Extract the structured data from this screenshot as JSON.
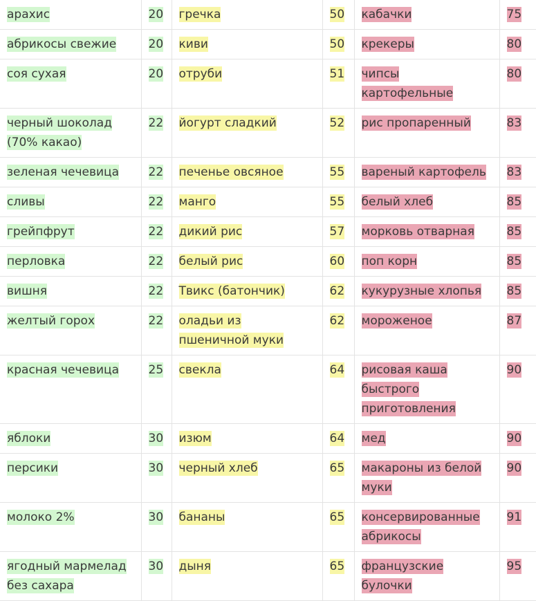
{
  "colors": {
    "low": "#d3f7d0",
    "medium": "#f8f6a6",
    "high": "#eaa6b4"
  },
  "rows": [
    {
      "low_food": "арахис",
      "low_gi": "20",
      "mid_food": "гречка",
      "mid_gi": "50",
      "high_food": "кабачки",
      "high_gi": "75"
    },
    {
      "low_food": "абрикосы свежие",
      "low_gi": "20",
      "mid_food": "киви",
      "mid_gi": "50",
      "high_food": "крекеры",
      "high_gi": "80"
    },
    {
      "low_food": "соя сухая",
      "low_gi": "20",
      "mid_food": "отруби",
      "mid_gi": "51",
      "high_food": "чипсы картофельные",
      "high_gi": "80"
    },
    {
      "low_food": "черный шоколад (70% какао)",
      "low_gi": "22",
      "mid_food": "йогурт сладкий",
      "mid_gi": "52",
      "high_food": "рис пропаренный",
      "high_gi": "83"
    },
    {
      "low_food": "зеленая чечевица",
      "low_gi": "22",
      "mid_food": "печенье овсяное",
      "mid_gi": "55",
      "high_food": "вареный картофель",
      "high_gi": "83"
    },
    {
      "low_food": "сливы",
      "low_gi": "22",
      "mid_food": "манго",
      "mid_gi": "55",
      "high_food": "белый хлеб",
      "high_gi": "85"
    },
    {
      "low_food": "грейпфрут",
      "low_gi": "22",
      "mid_food": "дикий рис",
      "mid_gi": "57",
      "high_food": "морковь отварная",
      "high_gi": "85"
    },
    {
      "low_food": "перловка",
      "low_gi": "22",
      "mid_food": "белый рис",
      "mid_gi": "60",
      "high_food": "поп корн",
      "high_gi": "85"
    },
    {
      "low_food": "вишня",
      "low_gi": "22",
      "mid_food": "Твикс (батончик)",
      "mid_gi": "62",
      "high_food": "кукурузные хлопья",
      "high_gi": "85"
    },
    {
      "low_food": "желтый горох",
      "low_gi": "22",
      "mid_food": "оладьи из пшеничной муки",
      "mid_gi": "62",
      "high_food": "мороженое",
      "high_gi": "87"
    },
    {
      "low_food": "красная чечевица",
      "low_gi": "25",
      "mid_food": "свекла",
      "mid_gi": "64",
      "high_food": "рисовая каша быстрого приготовления",
      "high_gi": "90"
    },
    {
      "low_food": "яблоки",
      "low_gi": "30",
      "mid_food": "изюм",
      "mid_gi": "64",
      "high_food": "мед",
      "high_gi": "90"
    },
    {
      "low_food": "персики",
      "low_gi": "30",
      "mid_food": "черный хлеб",
      "mid_gi": "65",
      "high_food": "макароны из белой муки",
      "high_gi": "90"
    },
    {
      "low_food": "молоко 2%",
      "low_gi": "30",
      "mid_food": "бананы",
      "mid_gi": "65",
      "high_food": "консервированные абрикосы",
      "high_gi": "91"
    },
    {
      "low_food": "ягодный мармелад без сахара",
      "low_gi": "30",
      "mid_food": "дыня",
      "mid_gi": "65",
      "high_food": "французские булочки",
      "high_gi": "95"
    }
  ]
}
